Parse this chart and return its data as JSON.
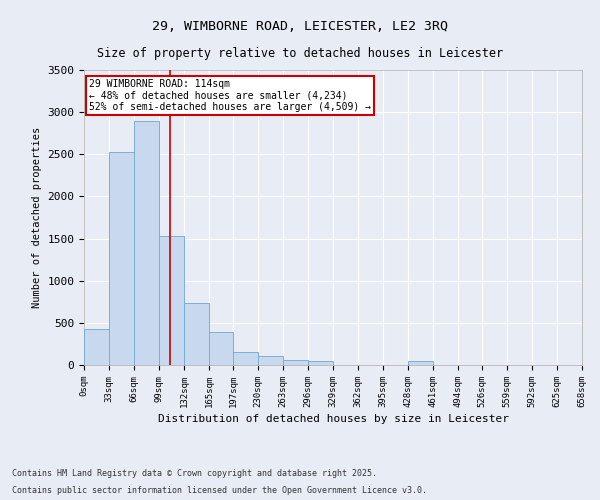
{
  "title_line1": "29, WIMBORNE ROAD, LEICESTER, LE2 3RQ",
  "title_line2": "Size of property relative to detached houses in Leicester",
  "xlabel": "Distribution of detached houses by size in Leicester",
  "ylabel": "Number of detached properties",
  "bar_color": "#c8d9ef",
  "bar_edge_color": "#7bafd4",
  "background_color": "#e8edf5",
  "grid_color": "#ffffff",
  "vline_color": "#cc0000",
  "vline_x": 114,
  "annotation_title": "29 WIMBORNE ROAD: 114sqm",
  "annotation_line2": "← 48% of detached houses are smaller (4,234)",
  "annotation_line3": "52% of semi-detached houses are larger (4,509) →",
  "annotation_box_color": "#cc0000",
  "bin_edges": [
    0,
    33,
    66,
    99,
    132,
    165,
    197,
    230,
    263,
    296,
    329,
    362,
    395,
    428,
    461,
    494,
    526,
    559,
    592,
    625,
    658
  ],
  "bar_heights": [
    430,
    2530,
    2900,
    1530,
    740,
    390,
    160,
    105,
    55,
    50,
    0,
    0,
    0,
    45,
    0,
    0,
    0,
    0,
    0,
    0
  ],
  "ylim": [
    0,
    3500
  ],
  "yticks": [
    0,
    500,
    1000,
    1500,
    2000,
    2500,
    3000,
    3500
  ],
  "footnote_line1": "Contains HM Land Registry data © Crown copyright and database right 2025.",
  "footnote_line2": "Contains public sector information licensed under the Open Government Licence v3.0.",
  "figsize": [
    6.0,
    5.0
  ],
  "dpi": 100
}
